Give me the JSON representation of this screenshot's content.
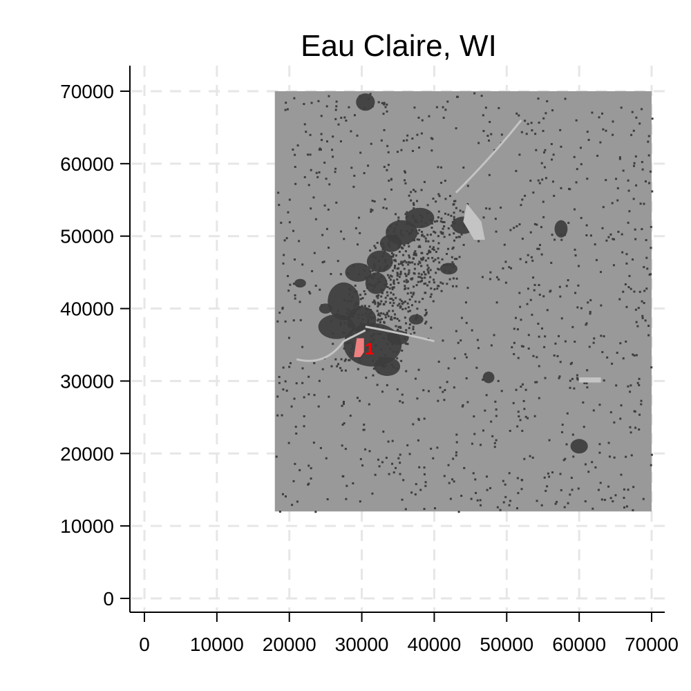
{
  "chart_data": {
    "type": "map",
    "title": "Eau Claire, WI",
    "xlabel": "",
    "ylabel": "",
    "xlim": [
      -2000,
      72000
    ],
    "ylim": [
      -2000,
      72000
    ],
    "x_ticks": [
      0,
      10000,
      20000,
      30000,
      40000,
      50000,
      60000,
      70000
    ],
    "y_ticks": [
      0,
      10000,
      20000,
      30000,
      40000,
      50000,
      60000,
      70000
    ],
    "x_tick_labels": [
      "0",
      "10000",
      "20000",
      "30000",
      "40000",
      "50000",
      "60000",
      "70000"
    ],
    "y_tick_labels": [
      "0",
      "10000",
      "20000",
      "30000",
      "40000",
      "50000",
      "60000",
      "70000"
    ],
    "grid": true,
    "raster_extent": {
      "x": [
        18000,
        70000
      ],
      "y": [
        12000,
        70000
      ]
    },
    "marker": {
      "label": "1",
      "x": 30500,
      "y": 34500
    },
    "colors": {
      "background_land": "#999999",
      "developed": "#3d3d3d",
      "water": "#c4c4c4",
      "highlight": "#ef8080",
      "marker_label": "#ff0000",
      "grid": "#e6e6e6"
    }
  }
}
